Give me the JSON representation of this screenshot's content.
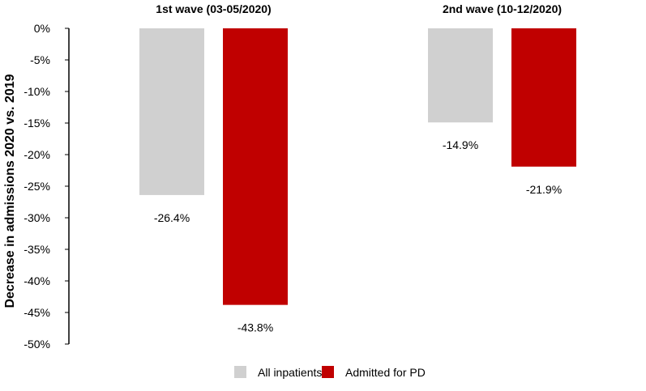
{
  "chart_data": {
    "type": "bar",
    "categories": [
      "1st wave (03-05/2020)",
      "2nd wave (10-12/2020)"
    ],
    "series": [
      {
        "name": "All inpatients",
        "values": [
          -26.4,
          -14.9
        ],
        "labels": [
          "-26.4%",
          "-14.9%"
        ],
        "color": "#d0d0d0"
      },
      {
        "name": "Admitted for PD",
        "values": [
          -43.8,
          -21.9
        ],
        "labels": [
          "-43.8%",
          "-21.9%"
        ],
        "color": "#c00000"
      }
    ],
    "xlabel": "",
    "ylabel": "Decrease in admissions 2020 vs. 2019",
    "ylim": [
      -50,
      0
    ],
    "yticks": [
      0,
      -5,
      -10,
      -15,
      -20,
      -25,
      -30,
      -35,
      -40,
      -45,
      -50
    ],
    "ytick_labels": [
      "0%",
      "-5%",
      "-10%",
      "-15%",
      "-20%",
      "-25%",
      "-30%",
      "-35%",
      "-40%",
      "-45%",
      "-50%"
    ],
    "category_labels_position": "top",
    "grid": false,
    "legend": "bottom-center"
  }
}
